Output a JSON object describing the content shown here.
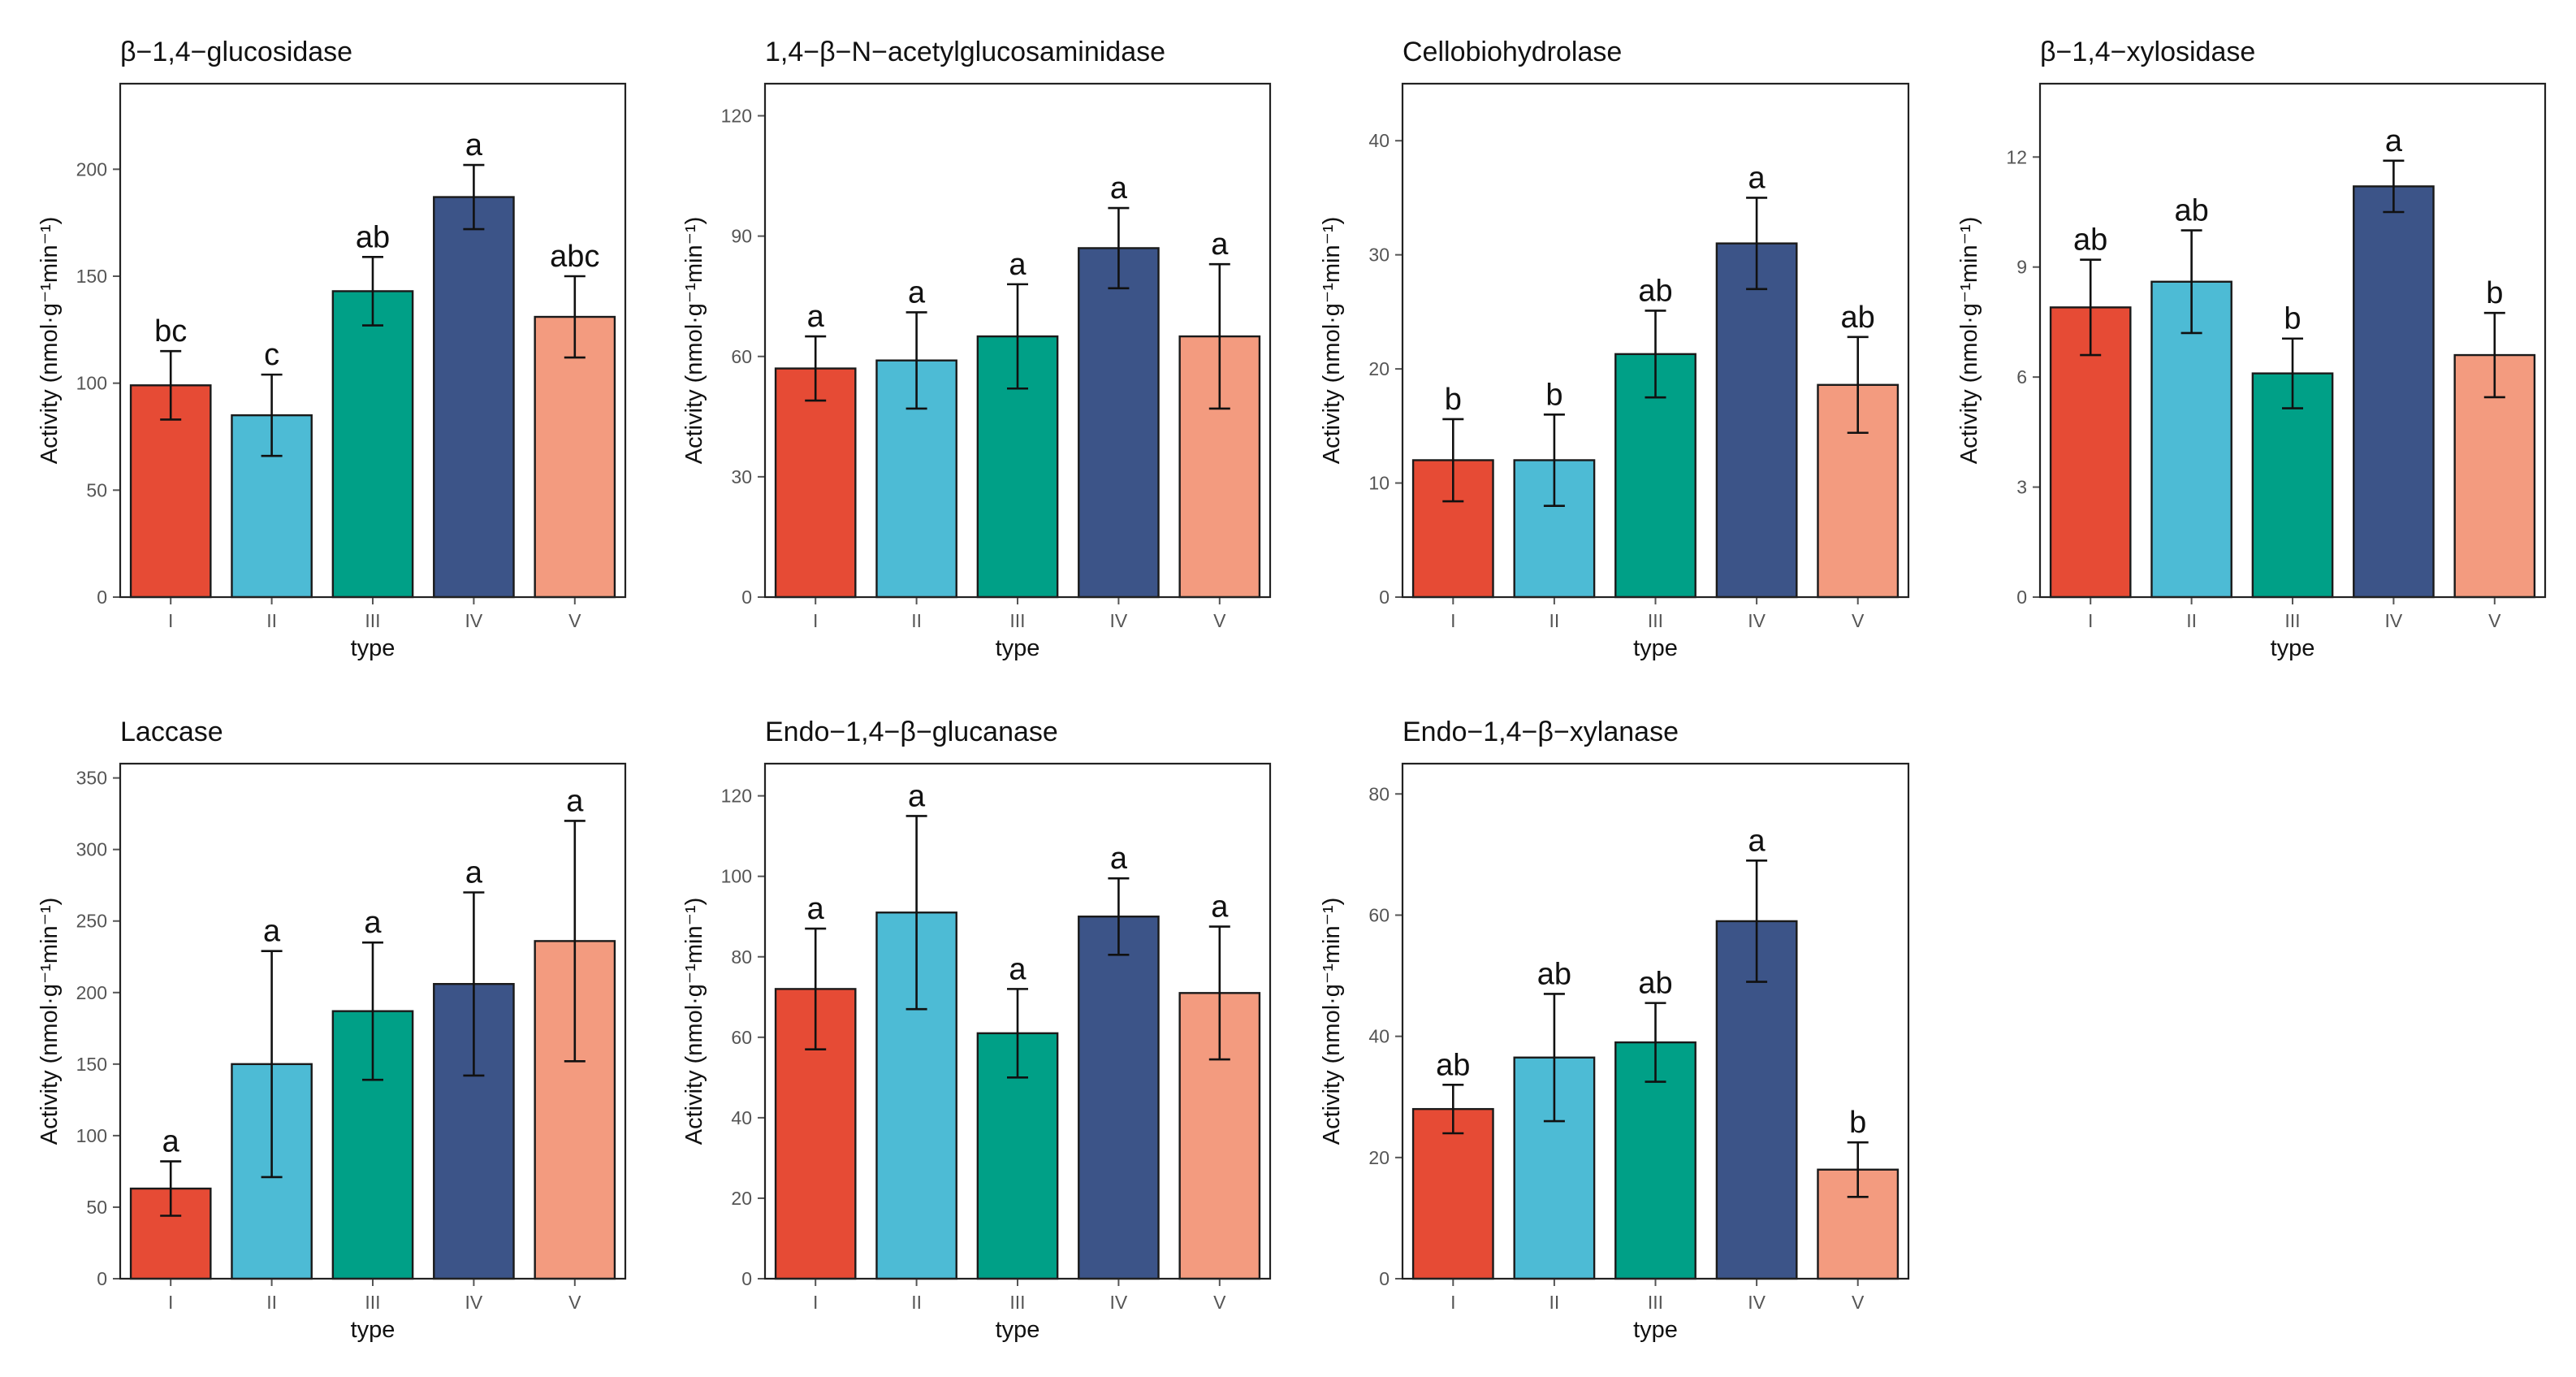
{
  "chart_data": [
    {
      "type": "bar",
      "title": "β−1,4−glucosidase",
      "xlabel": "type",
      "ylabel": "Activity (nmol·g⁻¹min⁻¹)",
      "categories": [
        "I",
        "II",
        "III",
        "IV",
        "V"
      ],
      "values": [
        99,
        85,
        143,
        187,
        131
      ],
      "errors": [
        16,
        19,
        16,
        15,
        19
      ],
      "letters": [
        "bc",
        "c",
        "ab",
        "a",
        "abc"
      ],
      "ylim": [
        0,
        240
      ],
      "yticks": [
        0,
        50,
        100,
        150,
        200
      ]
    },
    {
      "type": "bar",
      "title": "1,4−β−N−acetylglucosaminidase",
      "xlabel": "type",
      "ylabel": "Activity (nmol·g⁻¹min⁻¹)",
      "categories": [
        "I",
        "II",
        "III",
        "IV",
        "V"
      ],
      "values": [
        57,
        59,
        65,
        87,
        65
      ],
      "errors": [
        8,
        12,
        13,
        10,
        18
      ],
      "letters": [
        "a",
        "a",
        "a",
        "a",
        "a"
      ],
      "ylim": [
        0,
        128
      ],
      "yticks": [
        0,
        30,
        60,
        90,
        120
      ]
    },
    {
      "type": "bar",
      "title": "Cellobiohydrolase",
      "xlabel": "type",
      "ylabel": "Activity (nmol·g⁻¹min⁻¹)",
      "categories": [
        "I",
        "II",
        "III",
        "IV",
        "V"
      ],
      "values": [
        12,
        12,
        21.3,
        31,
        18.6
      ],
      "errors": [
        3.6,
        4,
        3.8,
        4,
        4.2
      ],
      "letters": [
        "b",
        "b",
        "ab",
        "a",
        "ab"
      ],
      "ylim": [
        0,
        45
      ],
      "yticks": [
        0,
        10,
        20,
        30,
        40
      ]
    },
    {
      "type": "bar",
      "title": "β−1,4−xylosidase",
      "xlabel": "type",
      "ylabel": "Activity (nmol·g⁻¹min⁻¹)",
      "categories": [
        "I",
        "II",
        "III",
        "IV",
        "V"
      ],
      "values": [
        7.9,
        8.6,
        6.1,
        11.2,
        6.6
      ],
      "errors": [
        1.3,
        1.4,
        0.95,
        0.7,
        1.15
      ],
      "letters": [
        "ab",
        "ab",
        "b",
        "a",
        "b"
      ],
      "ylim": [
        0,
        14
      ],
      "yticks": [
        0,
        3,
        6,
        9,
        12
      ]
    },
    {
      "type": "bar",
      "title": "Laccase",
      "xlabel": "type",
      "ylabel": "Activity (nmol·g⁻¹min⁻¹)",
      "categories": [
        "I",
        "II",
        "III",
        "IV",
        "V"
      ],
      "values": [
        63,
        150,
        187,
        206,
        236
      ],
      "errors": [
        19,
        79,
        48,
        64,
        84
      ],
      "letters": [
        "a",
        "a",
        "a",
        "a",
        "a"
      ],
      "ylim": [
        0,
        360
      ],
      "yticks": [
        0,
        50,
        100,
        150,
        200,
        250,
        300,
        350
      ]
    },
    {
      "type": "bar",
      "title": "Endo−1,4−β−glucanase",
      "xlabel": "type",
      "ylabel": "Activity (nmol·g⁻¹min⁻¹)",
      "categories": [
        "I",
        "II",
        "III",
        "IV",
        "V"
      ],
      "values": [
        72,
        91,
        61,
        90,
        71
      ],
      "errors": [
        15,
        24,
        11,
        9.5,
        16.5
      ],
      "letters": [
        "a",
        "a",
        "a",
        "a",
        "a"
      ],
      "ylim": [
        0,
        128
      ],
      "yticks": [
        0,
        20,
        40,
        60,
        80,
        100,
        120
      ]
    },
    {
      "type": "bar",
      "title": "Endo−1,4−β−xylanase",
      "xlabel": "type",
      "ylabel": "Activity (nmol·g⁻¹min⁻¹)",
      "categories": [
        "I",
        "II",
        "III",
        "IV",
        "V"
      ],
      "values": [
        28,
        36.5,
        39,
        59,
        18
      ],
      "errors": [
        4,
        10.5,
        6.5,
        10,
        4.5
      ],
      "letters": [
        "ab",
        "ab",
        "ab",
        "a",
        "b"
      ],
      "ylim": [
        0,
        85
      ],
      "yticks": [
        0,
        20,
        40,
        60,
        80
      ]
    }
  ],
  "palette": [
    "#E64B35",
    "#4DBBD5",
    "#00A087",
    "#3C5488",
    "#F39B7F"
  ]
}
